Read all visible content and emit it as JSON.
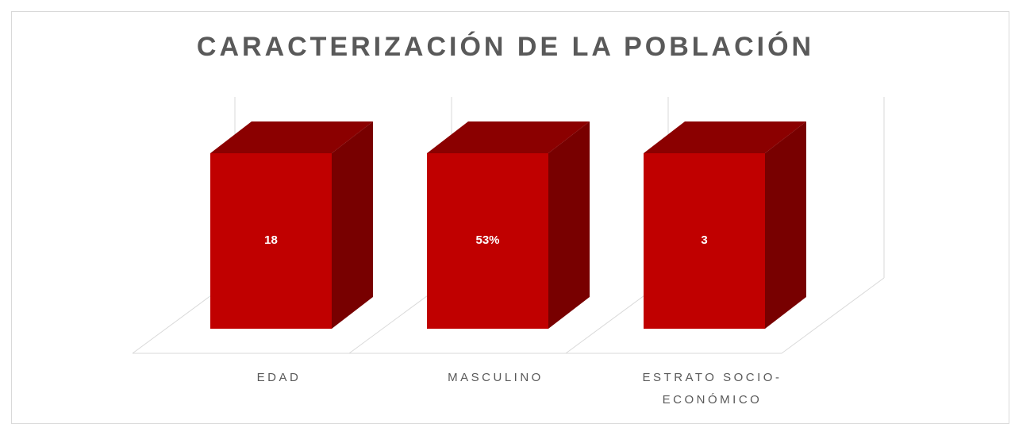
{
  "title": "CARACTERIZACIÓN DE LA POBLACIÓN",
  "items": [
    {
      "label": "EDAD",
      "value": "18"
    },
    {
      "label": "MASCULINO",
      "value": "53%"
    },
    {
      "label": "ESTRATO SOCIO-ECONÓMICO",
      "value": "3"
    }
  ]
}
